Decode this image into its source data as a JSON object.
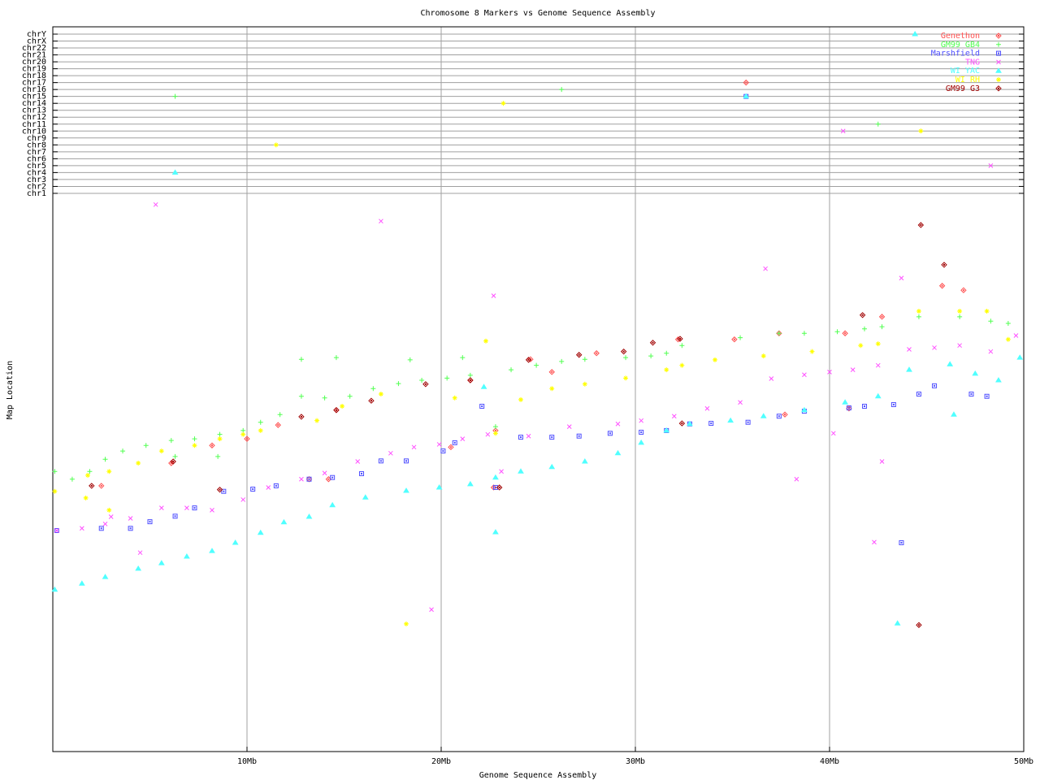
{
  "chart_data": {
    "type": "scatter",
    "title": "Chromosome 8 Markers vs Genome Sequence Assembly",
    "xlabel": "Genome Sequence Assembly",
    "ylabel": "Map Location",
    "xlim": [
      0,
      50
    ],
    "ylim": [
      0,
      100
    ],
    "x_ticks": [
      {
        "value": 10,
        "label": "10Mb"
      },
      {
        "value": 20,
        "label": "20Mb"
      },
      {
        "value": 30,
        "label": "30Mb"
      },
      {
        "value": 40,
        "label": "40Mb"
      },
      {
        "value": 50,
        "label": "50Mb"
      }
    ],
    "chromosome_rows": [
      "chrY",
      "chrX",
      "chr22",
      "chr21",
      "chr20",
      "chr19",
      "chr18",
      "chr17",
      "chr16",
      "chr15",
      "chr14",
      "chr13",
      "chr12",
      "chr11",
      "chr10",
      "chr9",
      "chr8",
      "chr7",
      "chr6",
      "chr5",
      "chr4",
      "chr3",
      "chr2",
      "chr1"
    ],
    "grid": true,
    "legend_position": "top-right",
    "series": [
      {
        "name": "Genethon",
        "marker": "diamond",
        "color": "#ff5050",
        "points": [
          [
            2.5,
            48.1
          ],
          [
            6.1,
            52.2
          ],
          [
            8.2,
            55.4
          ],
          [
            10.0,
            56.6
          ],
          [
            11.6,
            59.1
          ],
          [
            14.2,
            49.3
          ],
          [
            14.6,
            61.8
          ],
          [
            20.5,
            55.1
          ],
          [
            21.5,
            67.2
          ],
          [
            22.8,
            58.1
          ],
          [
            24.6,
            71.0
          ],
          [
            25.7,
            68.7
          ],
          [
            28.0,
            72.1
          ],
          [
            32.2,
            74.6
          ],
          [
            35.1,
            74.6
          ],
          [
            37.4,
            75.7
          ],
          [
            40.8,
            75.7
          ],
          [
            42.7,
            78.7
          ],
          [
            45.8,
            84.3
          ],
          [
            46.9,
            83.5
          ],
          [
            37.7,
            61.0
          ],
          [
            41.0,
            62.1
          ],
          [
            22.7,
            47.8
          ],
          [
            13.2,
            49.3
          ]
        ],
        "other_chromosome": [
          [
            35.7,
            "chr17"
          ]
        ]
      },
      {
        "name": "GM99 GB4",
        "marker": "plus",
        "color": "#50ff50",
        "points": [
          [
            0.1,
            50.7
          ],
          [
            1.0,
            49.3
          ],
          [
            1.9,
            50.7
          ],
          [
            2.7,
            52.9
          ],
          [
            3.6,
            54.4
          ],
          [
            4.8,
            55.4
          ],
          [
            6.1,
            56.3
          ],
          [
            7.3,
            56.6
          ],
          [
            8.6,
            57.4
          ],
          [
            9.8,
            58.1
          ],
          [
            10.7,
            59.6
          ],
          [
            11.7,
            61.0
          ],
          [
            12.8,
            64.3
          ],
          [
            14.0,
            64.0
          ],
          [
            15.3,
            64.3
          ],
          [
            16.5,
            65.7
          ],
          [
            17.8,
            66.6
          ],
          [
            19.0,
            67.2
          ],
          [
            20.3,
            67.6
          ],
          [
            21.5,
            68.1
          ],
          [
            22.8,
            58.8
          ],
          [
            23.6,
            69.1
          ],
          [
            24.9,
            69.9
          ],
          [
            26.2,
            70.6
          ],
          [
            27.4,
            71.0
          ],
          [
            29.5,
            71.3
          ],
          [
            30.8,
            71.6
          ],
          [
            31.6,
            72.1
          ],
          [
            32.4,
            73.5
          ],
          [
            35.4,
            74.9
          ],
          [
            37.4,
            75.7
          ],
          [
            38.7,
            75.7
          ],
          [
            40.4,
            76.0
          ],
          [
            41.8,
            76.5
          ],
          [
            42.7,
            76.9
          ],
          [
            44.6,
            78.7
          ],
          [
            46.7,
            78.7
          ],
          [
            48.3,
            77.9
          ],
          [
            49.2,
            77.5
          ],
          [
            6.3,
            53.4
          ],
          [
            8.5,
            53.4
          ],
          [
            12.8,
            71.0
          ],
          [
            14.6,
            71.3
          ],
          [
            18.4,
            70.9
          ],
          [
            21.1,
            71.3
          ]
        ],
        "other_chromosome": [
          [
            6.3,
            "chr15"
          ],
          [
            26.2,
            "chr16"
          ],
          [
            42.5,
            "chr11"
          ]
        ]
      },
      {
        "name": "Marshfield",
        "marker": "square",
        "color": "#5050ff",
        "points": [
          [
            0.2,
            40.0
          ],
          [
            2.5,
            40.4
          ],
          [
            4.0,
            40.4
          ],
          [
            5.0,
            41.6
          ],
          [
            6.3,
            42.6
          ],
          [
            7.3,
            44.1
          ],
          [
            8.8,
            47.1
          ],
          [
            10.3,
            47.5
          ],
          [
            11.5,
            48.1
          ],
          [
            13.2,
            49.3
          ],
          [
            14.4,
            49.6
          ],
          [
            15.9,
            50.3
          ],
          [
            16.9,
            52.6
          ],
          [
            18.2,
            52.6
          ],
          [
            20.1,
            54.4
          ],
          [
            20.7,
            55.9
          ],
          [
            22.1,
            62.5
          ],
          [
            22.8,
            47.8
          ],
          [
            24.1,
            56.9
          ],
          [
            25.7,
            56.9
          ],
          [
            27.1,
            57.1
          ],
          [
            28.7,
            57.6
          ],
          [
            30.3,
            57.8
          ],
          [
            31.6,
            58.1
          ],
          [
            32.8,
            59.3
          ],
          [
            33.9,
            59.4
          ],
          [
            35.8,
            59.6
          ],
          [
            37.4,
            60.7
          ],
          [
            38.7,
            61.6
          ],
          [
            41.0,
            62.2
          ],
          [
            41.8,
            62.5
          ],
          [
            43.3,
            62.8
          ],
          [
            44.6,
            64.7
          ],
          [
            45.4,
            66.2
          ],
          [
            47.3,
            64.7
          ],
          [
            48.1,
            64.3
          ],
          [
            43.7,
            37.8
          ]
        ],
        "other_chromosome": [
          [
            35.7,
            "chr15"
          ]
        ]
      },
      {
        "name": "TNG",
        "marker": "x",
        "color": "#ff50ff",
        "points": [
          [
            0.2,
            40.0
          ],
          [
            1.5,
            40.4
          ],
          [
            2.7,
            41.2
          ],
          [
            4.0,
            42.2
          ],
          [
            5.6,
            44.1
          ],
          [
            6.9,
            44.1
          ],
          [
            8.2,
            43.7
          ],
          [
            9.8,
            45.6
          ],
          [
            11.1,
            47.8
          ],
          [
            12.8,
            49.3
          ],
          [
            14.0,
            50.4
          ],
          [
            15.7,
            52.5
          ],
          [
            17.4,
            54.0
          ],
          [
            18.6,
            55.1
          ],
          [
            19.9,
            55.6
          ],
          [
            21.1,
            56.6
          ],
          [
            22.4,
            57.4
          ],
          [
            24.5,
            57.1
          ],
          [
            26.6,
            58.8
          ],
          [
            29.1,
            59.3
          ],
          [
            30.3,
            59.9
          ],
          [
            32.0,
            60.7
          ],
          [
            33.7,
            62.1
          ],
          [
            35.4,
            63.2
          ],
          [
            37.0,
            67.5
          ],
          [
            38.7,
            68.2
          ],
          [
            40.0,
            68.7
          ],
          [
            41.2,
            69.1
          ],
          [
            42.5,
            69.9
          ],
          [
            44.1,
            72.8
          ],
          [
            45.4,
            73.1
          ],
          [
            46.7,
            73.5
          ],
          [
            48.3,
            72.4
          ],
          [
            49.6,
            75.3
          ],
          [
            5.3,
            99.0
          ],
          [
            16.9,
            96.0
          ],
          [
            22.7,
            82.5
          ],
          [
            36.7,
            87.4
          ],
          [
            43.7,
            85.7
          ],
          [
            4.5,
            36.0
          ],
          [
            19.5,
            25.7
          ],
          [
            23.1,
            50.7
          ],
          [
            40.2,
            57.6
          ],
          [
            42.7,
            52.5
          ],
          [
            38.3,
            49.3
          ],
          [
            42.3,
            37.9
          ],
          [
            3.0,
            42.5
          ]
        ],
        "other_chromosome": [
          [
            40.7,
            "chr10"
          ],
          [
            48.3,
            "chr5"
          ]
        ]
      },
      {
        "name": "WI YAC",
        "marker": "triangle",
        "color": "#50ffff",
        "points": [
          [
            0.1,
            29.3
          ],
          [
            1.5,
            30.4
          ],
          [
            2.7,
            31.6
          ],
          [
            4.4,
            33.1
          ],
          [
            5.6,
            34.1
          ],
          [
            6.9,
            35.3
          ],
          [
            8.2,
            36.3
          ],
          [
            9.4,
            37.8
          ],
          [
            10.7,
            39.6
          ],
          [
            11.9,
            41.5
          ],
          [
            13.2,
            42.5
          ],
          [
            14.4,
            44.6
          ],
          [
            16.1,
            46.0
          ],
          [
            18.2,
            47.2
          ],
          [
            19.9,
            47.8
          ],
          [
            21.5,
            48.4
          ],
          [
            22.8,
            49.6
          ],
          [
            24.1,
            50.7
          ],
          [
            25.7,
            51.5
          ],
          [
            27.4,
            52.5
          ],
          [
            29.1,
            54.0
          ],
          [
            30.3,
            55.9
          ],
          [
            31.6,
            58.1
          ],
          [
            32.8,
            59.3
          ],
          [
            34.9,
            59.9
          ],
          [
            36.6,
            60.7
          ],
          [
            38.7,
            61.8
          ],
          [
            40.8,
            63.2
          ],
          [
            42.5,
            64.3
          ],
          [
            44.1,
            69.1
          ],
          [
            46.2,
            70.1
          ],
          [
            47.5,
            68.4
          ],
          [
            48.7,
            67.2
          ],
          [
            49.8,
            71.3
          ],
          [
            22.8,
            39.7
          ],
          [
            22.2,
            66.0
          ],
          [
            43.5,
            23.2
          ],
          [
            46.4,
            61.0
          ]
        ],
        "other_chromosome": [
          [
            6.3,
            "chr4"
          ],
          [
            35.7,
            "chr15"
          ],
          [
            44.4,
            "chrY"
          ]
        ]
      },
      {
        "name": "WI RH",
        "marker": "asterisk",
        "color": "#ffff00",
        "points": [
          [
            0.1,
            47.1
          ],
          [
            1.8,
            50.0
          ],
          [
            2.9,
            50.7
          ],
          [
            4.4,
            52.2
          ],
          [
            5.6,
            54.4
          ],
          [
            7.3,
            55.4
          ],
          [
            8.6,
            56.6
          ],
          [
            9.8,
            57.4
          ],
          [
            10.7,
            58.1
          ],
          [
            13.6,
            59.9
          ],
          [
            14.9,
            62.5
          ],
          [
            16.9,
            64.7
          ],
          [
            18.2,
            23.1
          ],
          [
            20.7,
            64.0
          ],
          [
            22.3,
            74.3
          ],
          [
            22.8,
            57.6
          ],
          [
            24.1,
            63.7
          ],
          [
            25.7,
            65.7
          ],
          [
            27.4,
            66.5
          ],
          [
            29.5,
            67.6
          ],
          [
            31.6,
            69.1
          ],
          [
            32.4,
            69.9
          ],
          [
            34.1,
            70.9
          ],
          [
            36.6,
            71.6
          ],
          [
            39.1,
            72.4
          ],
          [
            41.6,
            73.5
          ],
          [
            42.5,
            73.8
          ],
          [
            44.6,
            79.7
          ],
          [
            46.7,
            79.7
          ],
          [
            48.1,
            79.7
          ],
          [
            49.2,
            74.6
          ],
          [
            1.7,
            45.9
          ],
          [
            2.9,
            43.7
          ]
        ],
        "other_chromosome": [
          [
            11.5,
            "chr8"
          ],
          [
            23.2,
            "chr14"
          ],
          [
            44.7,
            "chr10"
          ]
        ]
      },
      {
        "name": "GM99 G3",
        "marker": "diamond",
        "color": "#a00000",
        "points": [
          [
            2.0,
            48.1
          ],
          [
            6.2,
            52.5
          ],
          [
            8.6,
            47.4
          ],
          [
            12.8,
            60.6
          ],
          [
            14.6,
            61.8
          ],
          [
            16.4,
            63.5
          ],
          [
            19.2,
            66.5
          ],
          [
            21.5,
            67.2
          ],
          [
            24.5,
            70.9
          ],
          [
            27.1,
            71.8
          ],
          [
            29.4,
            72.4
          ],
          [
            30.9,
            74.0
          ],
          [
            32.3,
            74.7
          ],
          [
            41.7,
            79.0
          ],
          [
            44.7,
            95.3
          ],
          [
            45.9,
            88.1
          ],
          [
            44.6,
            22.9
          ],
          [
            32.4,
            59.4
          ],
          [
            23.0,
            47.8
          ]
        ],
        "other_chromosome": []
      }
    ]
  }
}
